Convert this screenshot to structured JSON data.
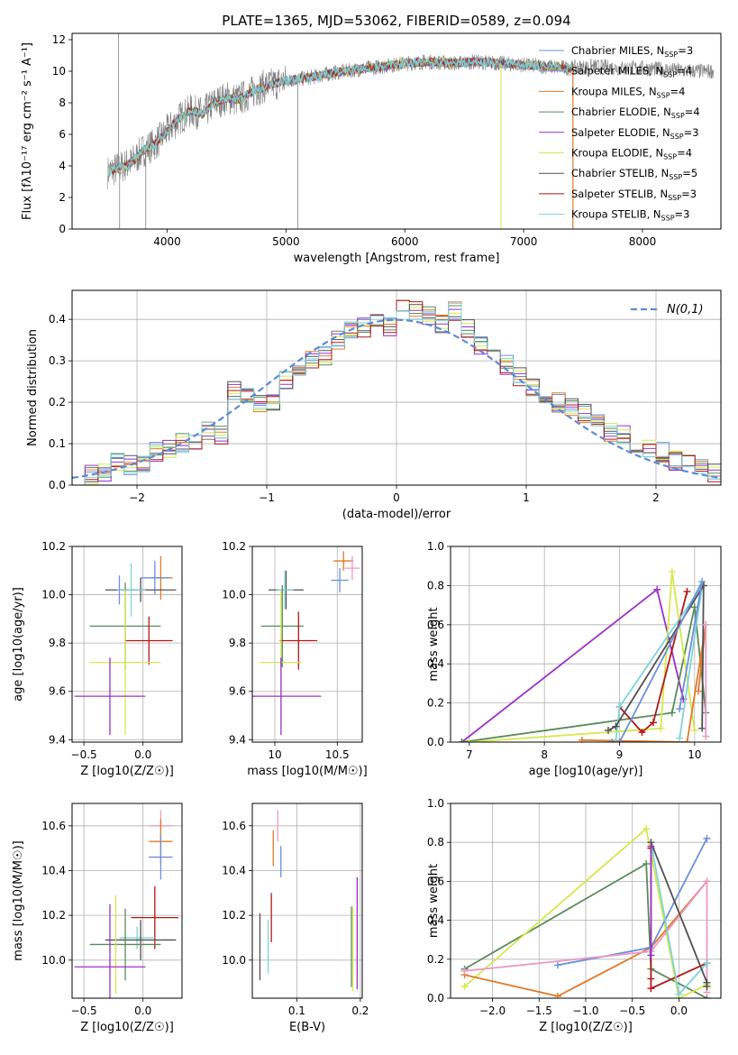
{
  "figure": {
    "title": "PLATE=1365, MJD=53062, FIBERID=0589, z=0.094"
  },
  "chart_data": [
    {
      "id": "spectrum",
      "type": "line",
      "title": "PLATE=1365, MJD=53062, FIBERID=0589, z=0.094",
      "xlabel": "wavelength [Angstrom, rest frame]",
      "ylabel": "Flux [f$_\\lambda$10$^{-17}$ erg cm$^{-2}$ s$^{-1}$ A$^{-1}$]",
      "ylabel_text": "Flux [fλ10⁻¹⁷ erg cm⁻² s⁻¹ A⁻¹]",
      "xlim": [
        3200,
        8660
      ],
      "ylim": [
        0,
        12.4
      ],
      "xticks": [
        4000,
        5000,
        6000,
        7000,
        8000
      ],
      "yticks": [
        0,
        2,
        4,
        6,
        8,
        10,
        12
      ],
      "grid": false,
      "legend_position": "right",
      "data_wavelength": [
        3500,
        3600,
        3700,
        3800,
        3900,
        4000,
        4100,
        4200,
        4300,
        4400,
        4500,
        4600,
        4700,
        4800,
        4900,
        5000,
        5200,
        5400,
        5600,
        5800,
        6000,
        6200,
        6400,
        6600,
        6800,
        7000,
        7200,
        7400,
        7600,
        7800,
        8000,
        8200,
        8400,
        8600
      ],
      "data_flux": [
        3.6,
        3.9,
        4.2,
        5.0,
        5.4,
        6.2,
        7.0,
        7.5,
        7.3,
        8.0,
        8.3,
        8.2,
        8.6,
        9.0,
        9.2,
        9.4,
        9.6,
        9.9,
        10.1,
        10.3,
        10.5,
        10.6,
        10.5,
        10.6,
        10.5,
        10.4,
        10.3,
        10.2,
        10.3,
        10.2,
        10.2,
        10.1,
        10.0,
        10.0
      ],
      "series": [
        {
          "name": "Chabrier MILES, N$_{SSP}$=3",
          "label": "Chabrier MILES, N",
          "nssp": "=3",
          "color": "#6a8fdb"
        },
        {
          "name": "Salpeter MILES, N$_{SSP}$=4",
          "label": "Salpeter MILES, N",
          "nssp": "=4",
          "color": "#8a97cc"
        },
        {
          "name": "Kroupa MILES, N$_{SSP}$=4",
          "label": "Kroupa MILES, N",
          "nssp": "=4",
          "color": "#e07a2a"
        },
        {
          "name": "Chabrier ELODIE, N$_{SSP}$=4",
          "label": "Chabrier ELODIE, N",
          "nssp": "=4",
          "color": "#5a8a5a"
        },
        {
          "name": "Salpeter ELODIE, N$_{SSP}$=3",
          "label": "Salpeter ELODIE, N",
          "nssp": "=3",
          "color": "#9b30c8"
        },
        {
          "name": "Kroupa ELODIE, N$_{SSP}$=4",
          "label": "Kroupa ELODIE, N",
          "nssp": "=4",
          "color": "#d4e84a"
        },
        {
          "name": "Chabrier STELIB, N$_{SSP}$=5",
          "label": "Chabrier STELIB, N",
          "nssp": "=5",
          "color": "#505050"
        },
        {
          "name": "Salpeter STELIB, N$_{SSP}$=3",
          "label": "Salpeter STELIB, N",
          "nssp": "=3",
          "color": "#b01818"
        },
        {
          "name": "Kroupa STELIB, N$_{SSP}$=3",
          "label": "Kroupa STELIB, N",
          "nssp": "=3",
          "color": "#7fd3d8"
        }
      ],
      "data_color": "#808080",
      "model_color": "#7fd3d8"
    },
    {
      "id": "residuals",
      "type": "bar",
      "xlabel": "(data-model)/error",
      "ylabel": "Normed distribution",
      "xlim": [
        -2.5,
        2.5
      ],
      "ylim": [
        0,
        0.47
      ],
      "xticks": [
        -2,
        -1,
        0,
        1,
        2
      ],
      "yticks": [
        0.0,
        0.1,
        0.2,
        0.3,
        0.4
      ],
      "grid": true,
      "legend_position": "upper right",
      "legend_label": "N(0,1)",
      "bins_x": [
        -2.5,
        -2.4,
        -2.3,
        -2.2,
        -2.1,
        -2.0,
        -1.9,
        -1.8,
        -1.7,
        -1.6,
        -1.5,
        -1.4,
        -1.3,
        -1.2,
        -1.1,
        -1.0,
        -0.9,
        -0.8,
        -0.7,
        -0.6,
        -0.5,
        -0.4,
        -0.3,
        -0.2,
        -0.1,
        0.0,
        0.1,
        0.2,
        0.3,
        0.4,
        0.5,
        0.6,
        0.7,
        0.8,
        0.9,
        1.0,
        1.1,
        1.2,
        1.3,
        1.4,
        1.5,
        1.6,
        1.7,
        1.8,
        1.9,
        2.0,
        2.1,
        2.2,
        2.3,
        2.4
      ],
      "hist_values": [
        0.02,
        0.025,
        0.03,
        0.06,
        0.05,
        0.05,
        0.08,
        0.09,
        0.1,
        0.11,
        0.13,
        0.12,
        0.23,
        0.22,
        0.2,
        0.2,
        0.25,
        0.27,
        0.3,
        0.31,
        0.35,
        0.37,
        0.38,
        0.4,
        0.38,
        0.43,
        0.42,
        0.41,
        0.39,
        0.42,
        0.38,
        0.34,
        0.32,
        0.29,
        0.26,
        0.24,
        0.22,
        0.2,
        0.19,
        0.17,
        0.15,
        0.13,
        0.12,
        0.1,
        0.09,
        0.08,
        0.06,
        0.05,
        0.04,
        0.03
      ],
      "normal_curve": "N(0,1)"
    },
    {
      "id": "age-vs-z",
      "type": "scatter",
      "xlabel": "Z [log10(Z/Z☉)]",
      "ylabel": "age  [log10(age/yr)]",
      "xlim": [
        -0.6,
        0.33
      ],
      "ylim": [
        9.39,
        10.2
      ],
      "xticks": [
        -0.5,
        0.0
      ],
      "xticklabels": [
        "−0.5",
        "0.0"
      ],
      "yticks": [
        9.4,
        9.6,
        9.8,
        10.0,
        10.2
      ],
      "grid": true,
      "points": [
        {
          "x": 0.15,
          "y": 10.07,
          "xerr": 0.1,
          "yerr": 0.09,
          "color": "#e07a2a"
        },
        {
          "x": 0.1,
          "y": 10.07,
          "xerr": 0.12,
          "yerr": 0.07,
          "color": "#6a8fdb"
        },
        {
          "x": -0.02,
          "y": 10.02,
          "xerr": 0.3,
          "yerr": 0.05,
          "color": "#505050"
        },
        {
          "x": -0.1,
          "y": 10.02,
          "xerr": 0.12,
          "yerr": 0.11,
          "color": "#7fd3d8"
        },
        {
          "x": -0.2,
          "y": 10.02,
          "xerr": 0.0,
          "yerr": 0.06,
          "color": "#6a8fdb"
        },
        {
          "x": -0.15,
          "y": 9.87,
          "xerr": 0.3,
          "yerr": 0.18,
          "color": "#5a8a5a"
        },
        {
          "x": 0.05,
          "y": 9.81,
          "xerr": 0.2,
          "yerr": 0.1,
          "color": "#b01818"
        },
        {
          "x": -0.15,
          "y": 9.72,
          "xerr": 0.3,
          "yerr": 0.3,
          "color": "#d4e84a"
        },
        {
          "x": -0.28,
          "y": 9.58,
          "xerr": 0.3,
          "yerr": 0.16,
          "color": "#9b30c8"
        }
      ]
    },
    {
      "id": "age-vs-mass",
      "type": "scatter",
      "xlabel": "mass [log10(M/M☉)]",
      "ylabel": "",
      "xlim": [
        9.82,
        10.7
      ],
      "ylim": [
        9.39,
        10.2
      ],
      "xticks": [
        10.0,
        10.5
      ],
      "yticks": [
        9.4,
        9.6,
        9.8,
        10.0,
        10.2
      ],
      "grid": true,
      "points": [
        {
          "x": 10.55,
          "y": 10.14,
          "xerr": 0.08,
          "yerr": 0.04,
          "color": "#e07a2a"
        },
        {
          "x": 10.62,
          "y": 10.11,
          "xerr": 0.06,
          "yerr": 0.05,
          "color": "#e89ac8"
        },
        {
          "x": 10.52,
          "y": 10.06,
          "xerr": 0.07,
          "yerr": 0.05,
          "color": "#6a8fdb"
        },
        {
          "x": 10.09,
          "y": 10.02,
          "xerr": 0.14,
          "yerr": 0.08,
          "color": "#505050"
        },
        {
          "x": 10.08,
          "y": 10.02,
          "xerr": 0.07,
          "yerr": 0.08,
          "color": "#7fd3d8"
        },
        {
          "x": 10.06,
          "y": 9.87,
          "xerr": 0.17,
          "yerr": 0.17,
          "color": "#5a8a5a"
        },
        {
          "x": 10.19,
          "y": 9.81,
          "xerr": 0.15,
          "yerr": 0.12,
          "color": "#b01818"
        },
        {
          "x": 10.05,
          "y": 9.72,
          "xerr": 0.17,
          "yerr": 0.3,
          "color": "#d4e84a"
        },
        {
          "x": 10.05,
          "y": 9.58,
          "xerr": 0.32,
          "yerr": 0.16,
          "color": "#9b30c8"
        }
      ]
    },
    {
      "id": "weight-vs-age",
      "type": "line",
      "xlabel": "age  [log10(age/yr)]",
      "ylabel": "mass weight",
      "xlim": [
        6.75,
        10.35
      ],
      "ylim": [
        0,
        1.0
      ],
      "xticks": [
        7,
        8,
        9,
        10
      ],
      "yticks": [
        0.0,
        0.2,
        0.4,
        0.6,
        0.8,
        1.0
      ],
      "grid": true,
      "series": [
        {
          "color": "#9b30c8",
          "x": [
            6.9,
            9.5,
            9.85
          ],
          "y": [
            0.0,
            0.78,
            0.22
          ]
        },
        {
          "color": "#5a8a5a",
          "x": [
            6.9,
            9.7,
            10.0,
            10.15
          ],
          "y": [
            0.0,
            0.15,
            0.69,
            0.15
          ]
        },
        {
          "color": "#d4e84a",
          "x": [
            7.0,
            9.55,
            9.7,
            10.0
          ],
          "y": [
            0.0,
            0.07,
            0.87,
            0.06
          ]
        },
        {
          "color": "#b01818",
          "x": [
            9.0,
            9.3,
            9.45,
            9.9
          ],
          "y": [
            0.18,
            0.05,
            0.1,
            0.77
          ]
        },
        {
          "color": "#e07a2a",
          "x": [
            8.5,
            9.9,
            10.15,
            10.05
          ],
          "y": [
            0.01,
            0.0,
            0.6,
            0.26
          ]
        },
        {
          "color": "#7fd3d8",
          "x": [
            8.95,
            9.0,
            10.1,
            9.8
          ],
          "y": [
            0.0,
            0.18,
            0.8,
            0.02
          ]
        },
        {
          "color": "#505050",
          "x": [
            8.85,
            8.95,
            10.12,
            10.1
          ],
          "y": [
            0.06,
            0.08,
            0.8,
            0.07
          ]
        },
        {
          "color": "#6a8fdb",
          "x": [
            8.9,
            9.0,
            10.1,
            9.8
          ],
          "y": [
            0.0,
            0.0,
            0.82,
            0.17
          ]
        },
        {
          "color": "#e89ac8",
          "x": [
            10.15,
            10.15
          ],
          "y": [
            0.6,
            0.03
          ]
        }
      ]
    },
    {
      "id": "mass-vs-z",
      "type": "scatter",
      "xlabel": "Z [log10(Z/Z☉)]",
      "ylabel": "mass [log10(M/M☉)]",
      "xlim": [
        -0.6,
        0.33
      ],
      "ylim": [
        9.83,
        10.7
      ],
      "xticks": [
        -0.5,
        0.0
      ],
      "xticklabels": [
        "−0.5",
        "0.0"
      ],
      "yticks": [
        10.0,
        10.2,
        10.4,
        10.6
      ],
      "grid": true,
      "points": [
        {
          "x": 0.15,
          "y": 10.6,
          "xerr": 0.1,
          "yerr": 0.07,
          "color": "#e89ac8"
        },
        {
          "x": 0.15,
          "y": 10.53,
          "xerr": 0.1,
          "yerr": 0.1,
          "color": "#e07a2a"
        },
        {
          "x": 0.15,
          "y": 10.46,
          "xerr": 0.1,
          "yerr": 0.1,
          "color": "#6a8fdb"
        },
        {
          "x": 0.1,
          "y": 10.19,
          "xerr": 0.2,
          "yerr": 0.14,
          "color": "#b01818"
        },
        {
          "x": -0.05,
          "y": 10.1,
          "xerr": 0.15,
          "yerr": 0.05,
          "color": "#7fd3d8"
        },
        {
          "x": -0.02,
          "y": 10.09,
          "xerr": 0.3,
          "yerr": 0.09,
          "color": "#505050"
        },
        {
          "x": -0.15,
          "y": 10.07,
          "xerr": 0.3,
          "yerr": 0.16,
          "color": "#5a8a5a"
        },
        {
          "x": -0.23,
          "y": 10.07,
          "xerr": 0.0,
          "yerr": 0.22,
          "color": "#d4e84a"
        },
        {
          "x": -0.28,
          "y": 9.97,
          "xerr": 0.3,
          "yerr": 0.28,
          "color": "#9b30c8"
        }
      ]
    },
    {
      "id": "mass-vs-ebv",
      "type": "scatter",
      "xlabel": "E(B-V)",
      "ylabel": "",
      "xlim": [
        0.03,
        0.203
      ],
      "ylim": [
        9.83,
        10.7
      ],
      "xticks": [
        0.1,
        0.2
      ],
      "yticks": [
        10.0,
        10.2,
        10.4,
        10.6
      ],
      "grid": true,
      "points": [
        {
          "x": 0.07,
          "y": 10.6,
          "yerr": 0.07,
          "color": "#e89ac8"
        },
        {
          "x": 0.063,
          "y": 10.5,
          "yerr": 0.08,
          "color": "#e07a2a"
        },
        {
          "x": 0.075,
          "y": 10.44,
          "yerr": 0.07,
          "color": "#6a8fdb"
        },
        {
          "x": 0.06,
          "y": 10.19,
          "yerr": 0.11,
          "color": "#b01818"
        },
        {
          "x": 0.055,
          "y": 10.06,
          "yerr": 0.12,
          "color": "#7fd3d8"
        },
        {
          "x": 0.042,
          "y": 10.06,
          "yerr": 0.15,
          "color": "#505050"
        },
        {
          "x": 0.186,
          "y": 10.06,
          "yerr": 0.18,
          "color": "#5a8a5a"
        },
        {
          "x": 0.188,
          "y": 10.05,
          "yerr": 0.19,
          "color": "#d4e84a"
        },
        {
          "x": 0.195,
          "y": 10.12,
          "yerr": 0.25,
          "color": "#9b30c8"
        }
      ]
    },
    {
      "id": "weight-vs-z",
      "type": "line",
      "xlabel": "Z [log10(Z/Z☉)]",
      "ylabel": "mass weight",
      "xlim": [
        -2.45,
        0.45
      ],
      "ylim": [
        0,
        1.0
      ],
      "xticks": [
        -2.0,
        -1.5,
        -1.0,
        -0.5,
        0.0
      ],
      "xticklabels": [
        "−2.0",
        "−1.5",
        "−1.0",
        "−0.5",
        "0.0"
      ],
      "yticks": [
        0.0,
        0.2,
        0.4,
        0.6,
        0.8,
        1.0
      ],
      "grid": true,
      "series": [
        {
          "color": "#5a8a5a",
          "x": [
            -2.3,
            -0.35,
            -0.3,
            0.3
          ],
          "y": [
            0.15,
            0.69,
            0.15,
            0.0
          ]
        },
        {
          "color": "#d4e84a",
          "x": [
            -2.3,
            -0.35,
            0.0,
            0.3
          ],
          "y": [
            0.06,
            0.87,
            0.0,
            0.07
          ]
        },
        {
          "color": "#e07a2a",
          "x": [
            -2.3,
            -1.3,
            -0.3,
            0.3
          ],
          "y": [
            0.12,
            0.01,
            0.26,
            0.6
          ]
        },
        {
          "color": "#6a8fdb",
          "x": [
            -1.3,
            -0.3,
            0.3
          ],
          "y": [
            0.17,
            0.26,
            0.82
          ]
        },
        {
          "color": "#e89ac8",
          "x": [
            -2.3,
            -0.3,
            0.3,
            0.3
          ],
          "y": [
            0.14,
            0.24,
            0.6,
            0.03
          ]
        },
        {
          "color": "#b01818",
          "x": [
            -0.3,
            -0.3,
            -0.3,
            0.3
          ],
          "y": [
            0.77,
            0.1,
            0.05,
            0.18
          ]
        },
        {
          "color": "#7fd3d8",
          "x": [
            -0.3,
            0.0,
            0.3
          ],
          "y": [
            0.8,
            0.02,
            0.18
          ]
        },
        {
          "color": "#505050",
          "x": [
            -0.3,
            0.3,
            0.3
          ],
          "y": [
            0.8,
            0.08,
            0.06
          ]
        },
        {
          "color": "#9b30c8",
          "x": [
            -0.3,
            -0.3
          ],
          "y": [
            0.78,
            0.22
          ]
        }
      ]
    }
  ]
}
